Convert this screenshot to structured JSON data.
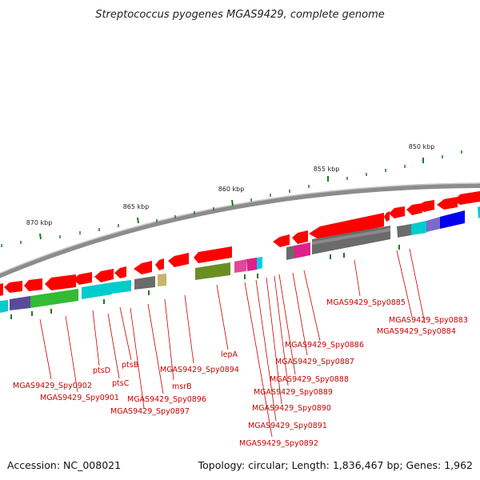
{
  "title": "Streptococcus pyogenes MGAS9429, complete genome",
  "accession": "Accession: NC_008021",
  "summary": "Topology: circular; Length: 1,836,467 bp; Genes: 1,962",
  "ticks": [
    "850 kbp",
    "855 kbp",
    "860 kbp",
    "865 kbp",
    "870 kbp"
  ],
  "gene_labels": [
    "MGAS9429_Spy0885",
    "MGAS9429_Spy0883",
    "MGAS9429_Spy0884",
    "MGAS9429_Spy0886",
    "MGAS9429_Spy0887",
    "MGAS9429_Spy0888",
    "MGAS9429_Spy0889",
    "MGAS9429_Spy0890",
    "MGAS9429_Spy0891",
    "MGAS9429_Spy0892",
    "lepA",
    "MGAS9429_Spy0894",
    "msrB",
    "MGAS9429_Spy0896",
    "MGAS9429_Spy0897",
    "ptsB",
    "ptsC",
    "ptsD",
    "MGAS9429_Spy0901",
    "MGAS9429_Spy0902"
  ],
  "colors": {
    "forward_cds": "#ff0000",
    "backbone": "#8c8c8c",
    "ticks": "#1a7a1a",
    "label": "#cc0000",
    "cyan": "#00cccc",
    "magenta": "#e0208a",
    "olive": "#6b8e23",
    "grey": "#6b6b6b",
    "purple": "#5a4a9a",
    "green": "#33bb33",
    "blue": "#0000ee",
    "tan": "#c8b46a"
  }
}
